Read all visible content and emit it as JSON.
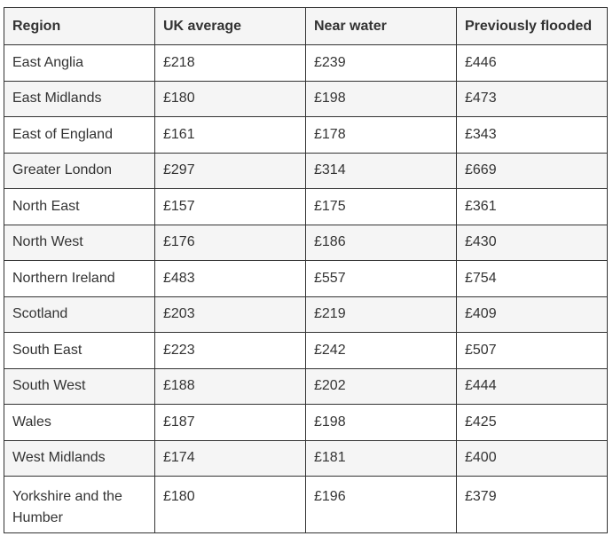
{
  "table": {
    "headers": [
      "Region",
      "UK average",
      "Near water",
      "Previously flooded"
    ],
    "rows": [
      [
        "East Anglia",
        "£218",
        "£239",
        "£446"
      ],
      [
        "East Midlands",
        "£180",
        "£198",
        "£473"
      ],
      [
        "East of England",
        "£161",
        "£178",
        "£343"
      ],
      [
        "Greater London",
        "£297",
        "£314",
        "£669"
      ],
      [
        "North East",
        "£157",
        "£175",
        "£361"
      ],
      [
        "North West",
        "£176",
        "£186",
        "£430"
      ],
      [
        "Northern Ireland",
        "£483",
        "£557",
        "£754"
      ],
      [
        "Scotland",
        "£203",
        "£219",
        "£409"
      ],
      [
        "South East",
        "£223",
        "£242",
        "£507"
      ],
      [
        "South West",
        "£188",
        "£202",
        "£444"
      ],
      [
        "Wales",
        "£187",
        "£198",
        "£425"
      ],
      [
        "West Midlands",
        "£174",
        "£181",
        "£400"
      ],
      [
        "Yorkshire and the Humber",
        "£180",
        "£196",
        "£379"
      ]
    ]
  },
  "colors": {
    "header_bg": "#f5f5f5",
    "stripe_bg": "#f5f5f5",
    "border": "#333333",
    "text": "#333333"
  }
}
